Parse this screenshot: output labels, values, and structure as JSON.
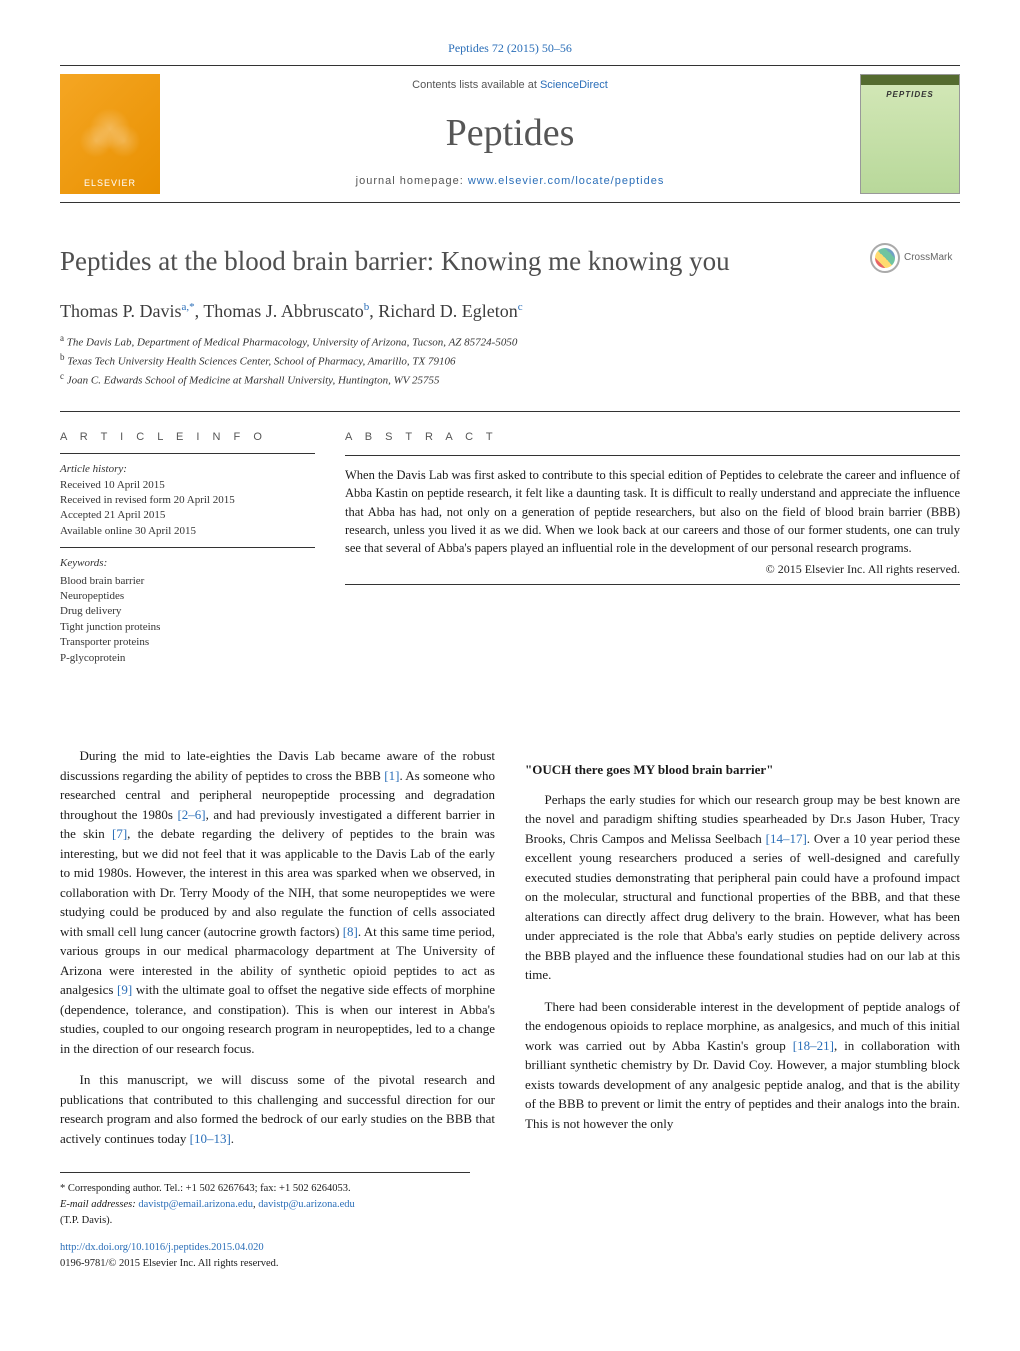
{
  "citation_line": "Peptides 72 (2015) 50–56",
  "header": {
    "contents_prefix": "Contents lists available at ",
    "contents_link": "ScienceDirect",
    "journal_name": "Peptides",
    "homepage_prefix": "journal homepage: ",
    "homepage_url": "www.elsevier.com/locate/peptides",
    "publisher_logo_label": "ELSEVIER",
    "cover_label": "PEPTIDES"
  },
  "crossmark_label": "CrossMark",
  "title": "Peptides at the blood brain barrier: Knowing me knowing you",
  "authors_html": "Thomas P. Davis",
  "author_sup_a": "a,*",
  "author_2": ", Thomas J. Abbruscato",
  "author_sup_b": "b",
  "author_3": ", Richard D. Egleton",
  "author_sup_c": "c",
  "affiliations": {
    "a": "The Davis Lab, Department of Medical Pharmacology, University of Arizona, Tucson, AZ 85724-5050",
    "b": "Texas Tech University Health Sciences Center, School of Pharmacy, Amarillo, TX 79106",
    "c": "Joan C. Edwards School of Medicine at Marshall University, Huntington, WV 25755"
  },
  "article_info_head": "A R T I C L E   I N F O",
  "history_label": "Article history:",
  "history": {
    "received": "Received 10 April 2015",
    "revised": "Received in revised form 20 April 2015",
    "accepted": "Accepted 21 April 2015",
    "online": "Available online 30 April 2015"
  },
  "keywords_label": "Keywords:",
  "keywords": [
    "Blood brain barrier",
    "Neuropeptides",
    "Drug delivery",
    "Tight junction proteins",
    "Transporter proteins",
    "P-glycoprotein"
  ],
  "abstract_head": "A B S T R A C T",
  "abstract_text": "When the Davis Lab was first asked to contribute to this special edition of Peptides to celebrate the career and influence of Abba Kastin on peptide research, it felt like a daunting task. It is difficult to really understand and appreciate the influence that Abba has had, not only on a generation of peptide researchers, but also on the field of blood brain barrier (BBB) research, unless you lived it as we did. When we look back at our careers and those of our former students, one can truly see that several of Abba's papers played an influential role in the development of our personal research programs.",
  "copyright": "© 2015 Elsevier Inc. All rights reserved.",
  "body": {
    "p1a": "During the mid to late-eighties the Davis Lab became aware of the robust discussions regarding the ability of peptides to cross the BBB ",
    "c1": "[1]",
    "p1b": ". As someone who researched central and peripheral neuropeptide processing and degradation throughout the 1980s ",
    "c2": "[2–6]",
    "p1c": ", and had previously investigated a different barrier in the skin ",
    "c3": "[7]",
    "p1d": ", the debate regarding the delivery of peptides to the brain was interesting, but we did not feel that it was applicable to the Davis Lab of the early to mid 1980s. However, the interest in this area was sparked when we observed, in collaboration with Dr. Terry Moody of the NIH, that some neuropeptides we were studying could be produced by and also regulate the function of cells associated with small cell lung cancer (autocrine growth factors) ",
    "c4": "[8]",
    "p1e": ". At this same time period, various groups in our medical pharmacology department at The University of Arizona were interested in the ability of synthetic opioid peptides to act as analgesics ",
    "c5": "[9]",
    "p1f": " with the ultimate goal to offset the negative side effects of morphine (dependence, tolerance, and constipation). This is when our interest in Abba's studies, coupled to our ongoing research program in neuropeptides, led to a change in the direction of our research focus.",
    "p2a": "In this manuscript, we will discuss some of the pivotal research and publications that contributed to this challenging and successful direction for our research program and also formed the bedrock of our early studies on the BBB that actively continues today ",
    "c6": "[10–13]",
    "p2b": ".",
    "heading1": "\"OUCH there goes MY blood brain barrier\"",
    "p3a": "Perhaps the early studies for which our research group may be best known are the novel and paradigm shifting studies spearheaded by Dr.s Jason Huber, Tracy Brooks, Chris Campos and Melissa Seelbach ",
    "c7": "[14–17]",
    "p3b": ". Over a 10 year period these excellent young researchers produced a series of well-designed and carefully executed studies demonstrating that peripheral pain could have a profound impact on the molecular, structural and functional properties of the BBB, and that these alterations can directly affect drug delivery to the brain. However, what has been under appreciated is the role that Abba's early studies on peptide delivery across the BBB played and the influence these foundational studies had on our lab at this time.",
    "p4a": "There had been considerable interest in the development of peptide analogs of the endogenous opioids to replace morphine, as analgesics, and much of this initial work was carried out by Abba Kastin's group ",
    "c8": "[18–21]",
    "p4b": ", in collaboration with brilliant synthetic chemistry by Dr. David Coy. However, a major stumbling block exists towards development of any analgesic peptide analog, and that is the ability of the BBB to prevent or limit the entry of peptides and their analogs into the brain. This is not however the only"
  },
  "footer": {
    "corr": "* Corresponding author. Tel.: +1 502 6267643; fax: +1 502 6264053.",
    "email_label": "E-mail addresses: ",
    "email1": "davistp@email.arizona.edu",
    "email_sep": ", ",
    "email2": "davistp@u.arizona.edu",
    "name": "(T.P. Davis).",
    "doi": "http://dx.doi.org/10.1016/j.peptides.2015.04.020",
    "issn": "0196-9781/© 2015 Elsevier Inc. All rights reserved."
  },
  "colors": {
    "link": "#2a6eb8",
    "heading_gray": "#4f4f4f",
    "rule": "#333333"
  }
}
